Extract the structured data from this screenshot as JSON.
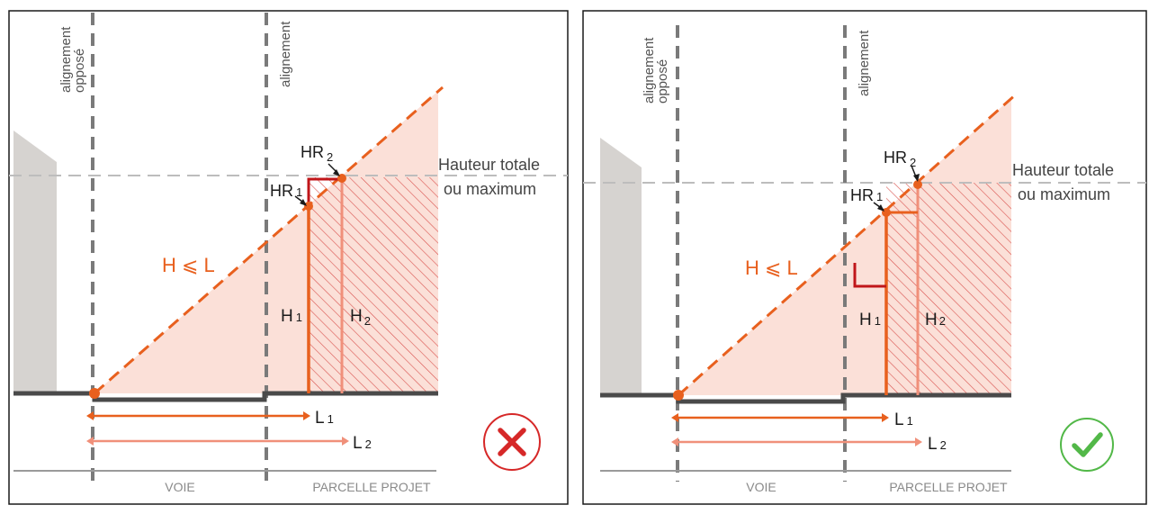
{
  "colors": {
    "frame": "#1a1a1a",
    "dash_gray": "#7a7a7a",
    "light_gray": "#bdbdbd",
    "building": "#d6d3d0",
    "ground": "#4a4a4a",
    "orange": "#e8601e",
    "salmon": "#f0907a",
    "fill": "#fbe0d8",
    "hatch": "#d9534f",
    "dark_red": "#c0161a",
    "red_icon": "#d62828",
    "green_icon": "#52b848"
  },
  "labels": {
    "alignement_oppose": [
      "alignement",
      "opposé"
    ],
    "alignement": "alignement",
    "hauteur_line1": "Hauteur totale",
    "hauteur_line2": "ou maximum",
    "h_le_l": "H ⩽ L",
    "h1": "H",
    "h1_sub": "1",
    "h2": "H",
    "h2_sub": "2",
    "hr1": "HR",
    "hr1_sub": "1",
    "hr2": "HR",
    "hr2_sub": "2",
    "l1": "L",
    "l1_sub": "1",
    "l2": "L",
    "l2_sub": "2",
    "voie": "VOIE",
    "parcelle": "PARCELLE PROJET"
  },
  "panels": [
    {
      "name": "left",
      "verdict": "incorrect",
      "verdict_icon": "cross-icon"
    },
    {
      "name": "right",
      "verdict": "correct",
      "verdict_icon": "check-icon"
    }
  ]
}
